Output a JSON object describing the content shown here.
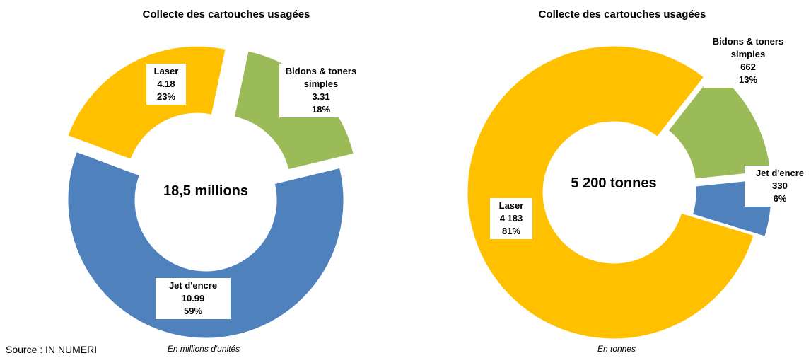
{
  "chart_data": [
    {
      "type": "donut",
      "title": "Collecte des cartouches usagées",
      "center_label": "18,5 millions",
      "note": "En millions d'unités",
      "categories": [
        "Bidons & toners simples",
        "Jet d'encre",
        "Laser"
      ],
      "values": [
        3.31,
        10.99,
        4.18
      ],
      "percents": [
        18,
        59,
        23
      ],
      "percent_labels": [
        "18%",
        "59%",
        "23%"
      ],
      "colors": [
        "#9bbb59",
        "#4f81bd",
        "#ffc000"
      ]
    },
    {
      "type": "donut",
      "title": "Collecte des cartouches usagées",
      "center_label": "5 200 tonnes",
      "note": "En tonnes",
      "categories": [
        "Bidons & toners simples",
        "Jet d'encre",
        "Laser"
      ],
      "values": [
        662,
        330,
        4183
      ],
      "value_labels": [
        "662",
        "330",
        "4 183"
      ],
      "percents": [
        13,
        6,
        81
      ],
      "percent_labels": [
        "13%",
        "6%",
        "81%"
      ],
      "colors": [
        "#9bbb59",
        "#4f81bd",
        "#ffc000"
      ]
    }
  ],
  "source": "Source : IN NUMERI"
}
